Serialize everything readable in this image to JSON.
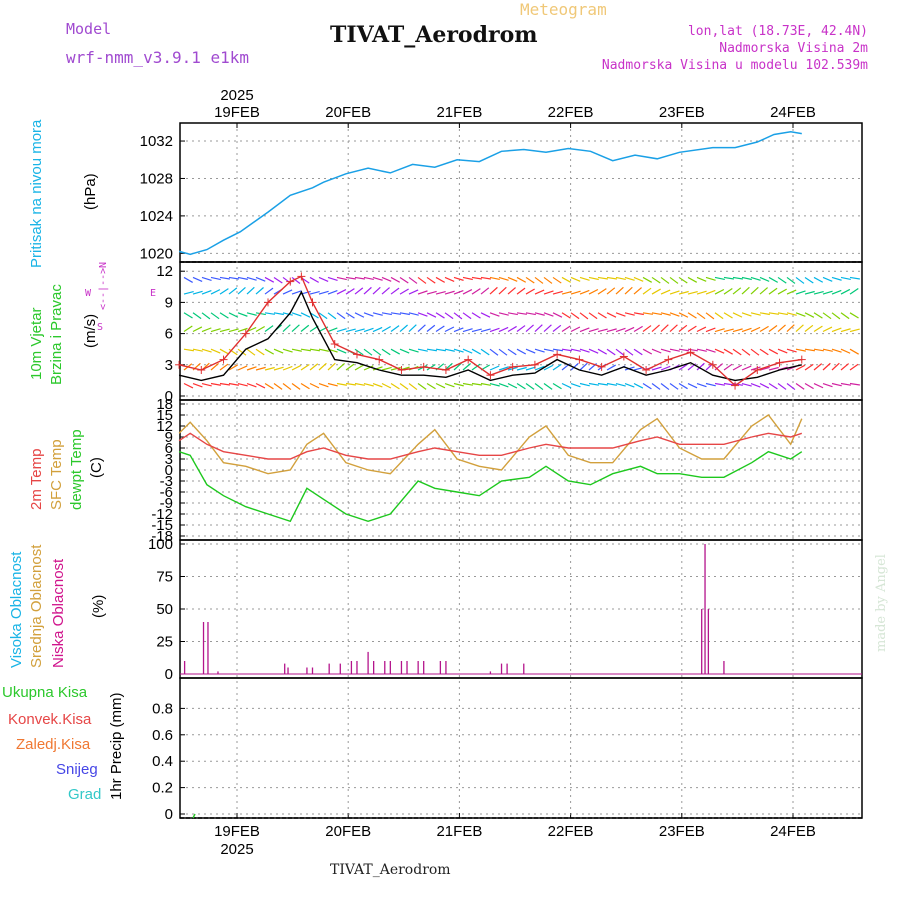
{
  "header": {
    "model_label": "Model",
    "model_name": "wrf-nmm_v3.9.1 e1km",
    "product": "Meteogram",
    "station": "TIVAT_Aerodrom",
    "coords": "lon,lat (18.73E, 42.4N)",
    "elevation": "Nadmorska Visina 2m",
    "model_elevation": "Nadmorska Visina u modelu 102.539m"
  },
  "footer": {
    "station": "TIVAT_Aerodrom"
  },
  "watermark": "made by Angel",
  "wind_compass": {
    "n": "N",
    "w": "W",
    "e": "E",
    "s": "S",
    "arrows": "<--|-->"
  },
  "colors": {
    "pressure": "#1aa0e6",
    "wind_speed": "#000000",
    "wind_gust": "#e03030",
    "temp_2m": "#e64646",
    "temp_sfc": "#d2a03c",
    "dewpoint": "#1ec81e",
    "cloud_low": "#b4148c",
    "grid": "#999999"
  },
  "chart_data": [
    {
      "type": "line",
      "panel": "pressure",
      "ylabel_title": "Pritisak na nivou mora",
      "ylabel_unit": "(hPa)",
      "top_axis": {
        "year": "2025",
        "labels": [
          "19FEB",
          "20FEB",
          "21FEB",
          "22FEB",
          "23FEB",
          "24FEB"
        ]
      },
      "x_day": [
        0.0,
        0.1,
        0.25,
        0.4,
        0.55,
        0.8,
        1.0,
        1.2,
        1.3,
        1.5,
        1.7,
        1.9,
        2.1,
        2.3,
        2.5,
        2.7,
        2.9,
        3.1,
        3.3,
        3.5,
        3.7,
        3.9,
        4.1,
        4.3,
        4.5,
        4.8,
        5.0,
        5.2,
        5.35,
        5.5,
        5.6
      ],
      "values": [
        1020.2,
        1019.9,
        1020.4,
        1021.4,
        1022.3,
        1024.4,
        1026.2,
        1027.0,
        1027.6,
        1028.5,
        1029.1,
        1028.6,
        1029.5,
        1029.2,
        1030.0,
        1029.8,
        1030.9,
        1031.1,
        1030.8,
        1031.2,
        1030.9,
        1029.9,
        1030.5,
        1030.1,
        1030.8,
        1031.3,
        1031.3,
        1031.9,
        1032.7,
        1033.0,
        1032.8
      ],
      "yticks": [
        1020,
        1024,
        1028,
        1032
      ],
      "ylim": [
        1019.5,
        1033.5
      ]
    },
    {
      "type": "line",
      "panel": "wind",
      "ylabel_title": "10m Vjetar",
      "ylabel_sub": "Brzina i Pravac",
      "ylabel_unit": "(m/s)",
      "series": [
        {
          "name": "speed",
          "x_day": [
            0.0,
            0.2,
            0.4,
            0.6,
            0.8,
            1.0,
            1.1,
            1.2,
            1.4,
            1.6,
            1.8,
            2.0,
            2.2,
            2.4,
            2.6,
            2.8,
            3.0,
            3.2,
            3.4,
            3.6,
            3.8,
            4.0,
            4.2,
            4.4,
            4.6,
            4.8,
            5.0,
            5.2,
            5.4,
            5.6
          ],
          "values": [
            2.0,
            1.5,
            2.0,
            4.5,
            5.5,
            8.0,
            10.0,
            7.5,
            3.5,
            3.2,
            2.5,
            2.0,
            2.0,
            1.8,
            2.5,
            1.5,
            2.0,
            2.2,
            3.5,
            2.5,
            2.0,
            2.8,
            2.0,
            2.5,
            3.2,
            2.0,
            1.5,
            1.8,
            2.5,
            3.0
          ]
        },
        {
          "name": "gust",
          "x_day": [
            0.0,
            0.2,
            0.4,
            0.6,
            0.8,
            1.0,
            1.1,
            1.2,
            1.4,
            1.6,
            1.8,
            2.0,
            2.2,
            2.4,
            2.6,
            2.8,
            3.0,
            3.2,
            3.4,
            3.6,
            3.8,
            4.0,
            4.2,
            4.4,
            4.6,
            4.8,
            5.0,
            5.2,
            5.4,
            5.6
          ],
          "values": [
            3.0,
            2.5,
            3.5,
            6.0,
            9.0,
            11.0,
            11.5,
            9.0,
            5.0,
            4.0,
            3.5,
            2.5,
            2.8,
            2.5,
            3.5,
            2.0,
            2.8,
            3.0,
            4.0,
            3.5,
            2.8,
            3.8,
            2.5,
            3.5,
            4.2,
            3.0,
            1.0,
            2.5,
            3.2,
            3.5
          ]
        }
      ],
      "yticks": [
        0,
        3,
        6,
        9,
        12
      ],
      "ylim": [
        0,
        12.5
      ]
    },
    {
      "type": "line",
      "panel": "temperature",
      "ylabel_titles": [
        "2m Temp",
        "SFC Temp",
        "dewpt Temp"
      ],
      "ylabel_unit": "(C)",
      "series": [
        {
          "name": "2m Temp",
          "x_day": [
            0.0,
            0.1,
            0.25,
            0.4,
            0.6,
            0.8,
            1.0,
            1.15,
            1.3,
            1.5,
            1.7,
            1.9,
            2.15,
            2.3,
            2.5,
            2.7,
            2.9,
            3.15,
            3.3,
            3.5,
            3.7,
            3.9,
            4.15,
            4.3,
            4.5,
            4.7,
            4.9,
            5.15,
            5.3,
            5.5,
            5.6
          ],
          "values": [
            8,
            10,
            7,
            5,
            4,
            3,
            3,
            5,
            6,
            4,
            3,
            3,
            5,
            6,
            5,
            4,
            4,
            6,
            7,
            6,
            6,
            6,
            8,
            9,
            7,
            7,
            7,
            9,
            10,
            9,
            10
          ]
        },
        {
          "name": "SFC Temp",
          "x_day": [
            0.0,
            0.1,
            0.25,
            0.4,
            0.6,
            0.8,
            1.0,
            1.15,
            1.3,
            1.5,
            1.7,
            1.9,
            2.15,
            2.3,
            2.5,
            2.7,
            2.9,
            3.15,
            3.3,
            3.5,
            3.7,
            3.9,
            4.15,
            4.3,
            4.5,
            4.7,
            4.9,
            5.15,
            5.3,
            5.5,
            5.6
          ],
          "values": [
            10,
            13,
            8,
            2,
            1,
            -1,
            0,
            7,
            10,
            2,
            0,
            -1,
            7,
            11,
            3,
            1,
            0,
            9,
            12,
            4,
            2,
            2,
            11,
            14,
            6,
            3,
            3,
            12,
            15,
            7,
            14
          ]
        },
        {
          "name": "dewpt Temp",
          "x_day": [
            0.0,
            0.1,
            0.25,
            0.4,
            0.6,
            0.8,
            1.0,
            1.15,
            1.3,
            1.5,
            1.7,
            1.9,
            2.15,
            2.3,
            2.5,
            2.7,
            2.9,
            3.15,
            3.3,
            3.5,
            3.7,
            3.9,
            4.15,
            4.3,
            4.5,
            4.7,
            4.9,
            5.15,
            5.3,
            5.5,
            5.6
          ],
          "values": [
            5,
            4,
            -4,
            -7,
            -10,
            -12,
            -14,
            -5,
            -8,
            -12,
            -14,
            -12,
            -3,
            -5,
            -6,
            -7,
            -3,
            -2,
            1,
            -3,
            -4,
            -1,
            1,
            -1,
            -1,
            -2,
            -2,
            2,
            5,
            3,
            5
          ]
        }
      ],
      "yticks": [
        -18,
        -15,
        -12,
        -9,
        -6,
        -3,
        0,
        3,
        6,
        9,
        12,
        15,
        18
      ],
      "ylim": [
        -18,
        18
      ]
    },
    {
      "type": "bar",
      "panel": "clouds",
      "ylabel_titles": [
        "Visoka Oblacnost",
        "Srednja Oblacnost",
        "Niska Oblacnost"
      ],
      "ylabel_unit": "(%)",
      "series": [
        {
          "name": "Niska Oblacnost",
          "x_day": [
            0.05,
            0.22,
            0.26,
            0.35,
            0.95,
            0.98,
            1.15,
            1.2,
            1.35,
            1.45,
            1.55,
            1.6,
            1.7,
            1.75,
            1.85,
            1.9,
            2.0,
            2.05,
            2.15,
            2.2,
            2.35,
            2.4,
            2.8,
            2.9,
            2.95,
            3.1,
            4.7,
            4.73,
            4.76,
            4.9
          ],
          "values": [
            10,
            40,
            40,
            2,
            8,
            5,
            5,
            5,
            8,
            8,
            10,
            10,
            17,
            10,
            10,
            10,
            10,
            10,
            10,
            10,
            10,
            10,
            2,
            8,
            8,
            8,
            50,
            100,
            50,
            10
          ]
        }
      ],
      "yticks": [
        0,
        25,
        50,
        75,
        100
      ],
      "ylim": [
        0,
        100
      ]
    },
    {
      "type": "bar",
      "panel": "precip",
      "legend": [
        "Ukupna Kisa",
        "Konvek.Kisa",
        "Zaledj.Kisa",
        "Snijeg",
        "Grad"
      ],
      "ylabel_unit": "1hr Precip (mm)",
      "bottom_axis": {
        "year": "2025",
        "labels": [
          "19FEB",
          "20FEB",
          "21FEB",
          "22FEB",
          "23FEB",
          "24FEB"
        ]
      },
      "values": [],
      "yticks": [
        0,
        0.2,
        0.4,
        0.6,
        0.8
      ],
      "ylim": [
        0,
        1
      ]
    }
  ]
}
